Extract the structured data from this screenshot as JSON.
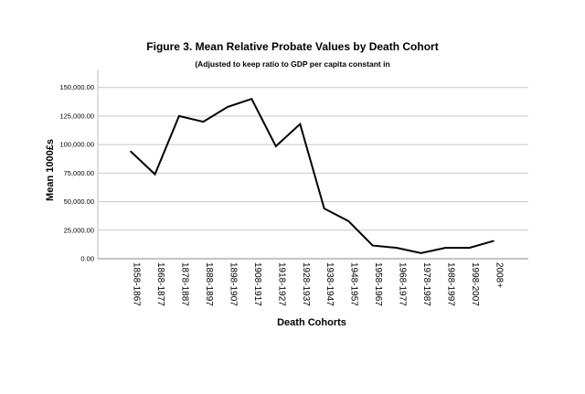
{
  "chart_data": {
    "type": "line",
    "title": "Figure 3. Mean Relative Probate Values by Death Cohort",
    "subtitle": "(Adjusted to keep ratio to GDP per capita constant in",
    "xlabel": "Death Cohorts",
    "ylabel": "Mean 1000£s",
    "categories": [
      "1858-1867",
      "1868-1877",
      "1878-1887",
      "1888-1897",
      "1898-1907",
      "1908-1917",
      "1918-1927",
      "1928-1937",
      "1938-1947",
      "1948-1957",
      "1958-1967",
      "1968-1977",
      "1978-1987",
      "1988-1997",
      "1998-2007",
      "2008+"
    ],
    "values": [
      94000,
      74000,
      125000,
      120000,
      133000,
      140000,
      98500,
      118000,
      44000,
      33000,
      11500,
      9500,
      5000,
      9500,
      9500,
      15500
    ],
    "ylim": [
      0,
      165000
    ],
    "yticks": [
      0,
      25000,
      50000,
      75000,
      100000,
      125000,
      150000
    ],
    "ytick_labels": [
      "0.00",
      "25,000.00",
      "50,000.00",
      "75,000.00",
      "100,000.00",
      "125,000.00",
      "150,000.00"
    ],
    "grid": true,
    "line_color": "#000000",
    "grid_color": "#c8c8c8"
  }
}
